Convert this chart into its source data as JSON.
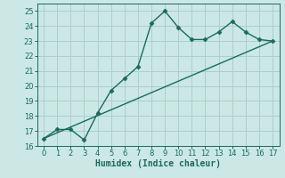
{
  "title": "",
  "xlabel": "Humidex (Indice chaleur)",
  "ylabel": "",
  "background_color": "#cce8e4",
  "grid_color": "#aacfcb",
  "line_color": "#1a6b5a",
  "xlim": [
    -0.5,
    17.5
  ],
  "ylim": [
    16,
    25.5
  ],
  "xticks": [
    0,
    1,
    2,
    3,
    4,
    5,
    6,
    7,
    8,
    9,
    10,
    11,
    12,
    13,
    14,
    15,
    16,
    17
  ],
  "yticks": [
    16,
    17,
    18,
    19,
    20,
    21,
    22,
    23,
    24,
    25
  ],
  "curve_x": [
    0,
    1,
    2,
    3,
    4,
    5,
    6,
    7,
    8,
    9,
    10,
    11,
    12,
    13,
    14,
    15,
    16,
    17
  ],
  "curve_y": [
    16.5,
    17.1,
    17.1,
    16.4,
    18.2,
    19.7,
    20.5,
    21.3,
    24.2,
    25.0,
    23.9,
    23.1,
    23.1,
    23.6,
    24.3,
    23.6,
    23.1,
    23.0
  ],
  "trend_x": [
    0,
    17
  ],
  "trend_y": [
    16.5,
    23.0
  ],
  "marker": "D",
  "markersize": 2.5,
  "linewidth": 1.0,
  "tick_fontsize": 6,
  "label_fontsize": 7
}
